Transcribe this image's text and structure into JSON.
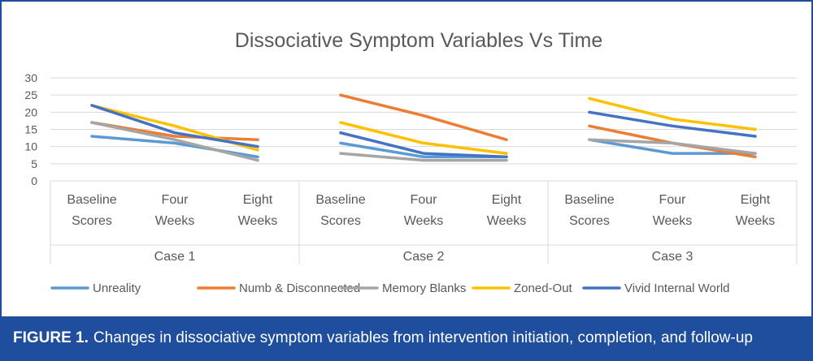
{
  "caption": {
    "label": "FIGURE 1.",
    "text": "Changes in dissociative symptom variables from intervention initiation, completion, and follow-up"
  },
  "colors": {
    "frame": "#1f4e9c",
    "caption_bg": "#1f4e9c",
    "caption_text": "#ffffff"
  },
  "chart_data": {
    "type": "line",
    "title": "Dissociative Symptom Variables Vs Time",
    "xlabel": "",
    "ylabel": "",
    "ylim": [
      0,
      30
    ],
    "yticks": [
      0,
      5,
      10,
      15,
      20,
      25,
      30
    ],
    "grid": true,
    "legend_position": "bottom",
    "groups": [
      {
        "name": "Case 1",
        "categories": [
          [
            "Baseline",
            "Scores"
          ],
          [
            "Four",
            "Weeks"
          ],
          [
            "Eight",
            "Weeks"
          ]
        ]
      },
      {
        "name": "Case 2",
        "categories": [
          [
            "Baseline",
            "Scores"
          ],
          [
            "Four",
            "Weeks"
          ],
          [
            "Eight",
            "Weeks"
          ]
        ]
      },
      {
        "name": "Case 3",
        "categories": [
          [
            "Baseline",
            "Scores"
          ],
          [
            "Four",
            "Weeks"
          ],
          [
            "Eight",
            "Weeks"
          ]
        ]
      }
    ],
    "series": [
      {
        "name": "Unreality",
        "color": "#5b9bd5",
        "values": [
          [
            13,
            11,
            7
          ],
          [
            11,
            7,
            7
          ],
          [
            12,
            8,
            8
          ]
        ]
      },
      {
        "name": "Numb & Disconnected",
        "color": "#ed7d31",
        "values": [
          [
            17,
            13,
            12
          ],
          [
            25,
            19,
            12
          ],
          [
            16,
            11,
            7
          ]
        ]
      },
      {
        "name": "Memory Blanks",
        "color": "#a5a5a5",
        "values": [
          [
            17,
            12,
            6
          ],
          [
            8,
            6,
            6
          ],
          [
            12,
            11,
            8
          ]
        ]
      },
      {
        "name": "Zoned-Out",
        "color": "#ffc000",
        "values": [
          [
            22,
            16,
            9
          ],
          [
            17,
            11,
            8
          ],
          [
            24,
            18,
            15
          ]
        ]
      },
      {
        "name": "Vivid Internal World",
        "color": "#4472c4",
        "values": [
          [
            22,
            14,
            10
          ],
          [
            14,
            8,
            7
          ],
          [
            20,
            16,
            13
          ]
        ]
      }
    ]
  }
}
